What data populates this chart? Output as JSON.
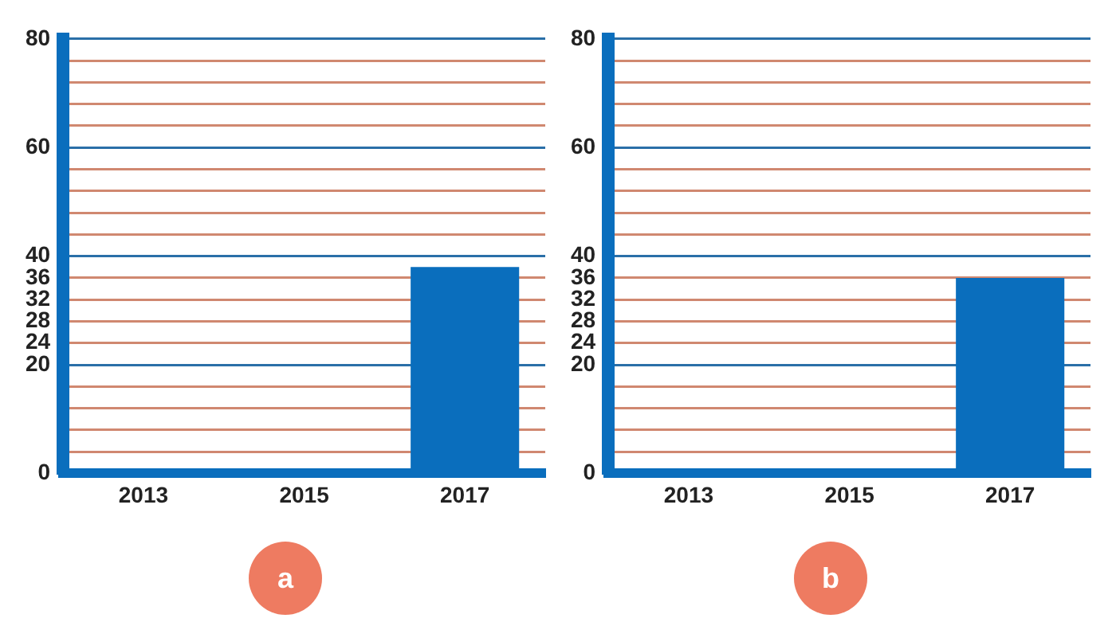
{
  "chart_data": [
    {
      "type": "bar",
      "categories": [
        "2013",
        "2015",
        "2017"
      ],
      "values": [
        null,
        null,
        38
      ],
      "color": "#0a6ebd",
      "ylim": [
        0,
        80
      ],
      "yticks": [
        0,
        {
          "value": 4,
          "label": null
        },
        {
          "value": 8,
          "label": null
        },
        {
          "value": 12,
          "label": null
        },
        {
          "value": 16,
          "label": null
        },
        20,
        24,
        28,
        32,
        36,
        40,
        {
          "value": 44,
          "label": null
        },
        {
          "value": 48,
          "label": null
        },
        {
          "value": 52,
          "label": null
        },
        {
          "value": 56,
          "label": null
        },
        60,
        {
          "value": 64,
          "label": null
        },
        {
          "value": 68,
          "label": null
        },
        {
          "value": 72,
          "label": null
        },
        {
          "value": 76,
          "label": null
        },
        80
      ],
      "grid": "y",
      "annotations": [
        "a"
      ]
    },
    {
      "type": "bar",
      "categories": [
        "2013",
        "2015",
        "2017"
      ],
      "values": [
        null,
        null,
        36
      ],
      "color": "#0a6ebd",
      "ylim": [
        0,
        80
      ],
      "yticks": [
        0,
        {
          "value": 4,
          "label": null
        },
        {
          "value": 8,
          "label": null
        },
        {
          "value": 12,
          "label": null
        },
        {
          "value": 16,
          "label": null
        },
        20,
        24,
        28,
        32,
        36,
        40,
        {
          "value": 44,
          "label": null
        },
        {
          "value": 48,
          "label": null
        },
        {
          "value": 52,
          "label": null
        },
        {
          "value": 56,
          "label": null
        },
        60,
        {
          "value": 64,
          "label": null
        },
        {
          "value": 68,
          "label": null
        },
        {
          "value": 72,
          "label": null
        },
        {
          "value": 76,
          "label": null
        },
        80
      ],
      "grid": "y",
      "annotations": [
        "b"
      ]
    }
  ]
}
